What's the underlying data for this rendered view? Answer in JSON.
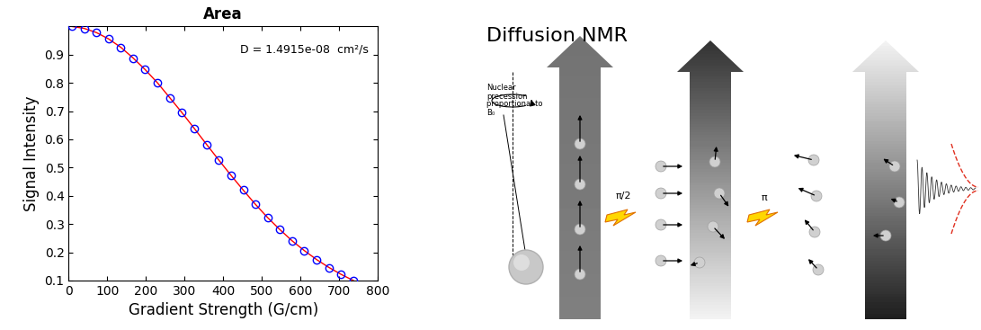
{
  "chart_data": {
    "type": "line",
    "title": "Area",
    "x_label": "Gradient Strength (G/cm)",
    "y_label": "Signal Intensity",
    "annotations": [
      "D = 1.4915e-08  cm²/s"
    ],
    "x": [
      8,
      40,
      72,
      103,
      135,
      167,
      198,
      230,
      262,
      293,
      325,
      357,
      389,
      420,
      452,
      484,
      515,
      547,
      579,
      610,
      642,
      674,
      705,
      737
    ],
    "series": [
      {
        "type": "line",
        "color": "#ff0000",
        "line_style": "solid",
        "values": [
          1.0,
          0.993,
          0.978,
          0.956,
          0.926,
          0.888,
          0.847,
          0.8,
          0.747,
          0.695,
          0.639,
          0.582,
          0.526,
          0.473,
          0.42,
          0.369,
          0.323,
          0.28,
          0.24,
          0.206,
          0.174,
          0.146,
          0.122,
          0.1
        ]
      },
      {
        "type": "scatter",
        "color": "#0000ff",
        "marker": "circle",
        "values": [
          1.0,
          0.993,
          0.978,
          0.956,
          0.926,
          0.888,
          0.847,
          0.8,
          0.747,
          0.695,
          0.639,
          0.582,
          0.526,
          0.473,
          0.42,
          0.369,
          0.323,
          0.28,
          0.24,
          0.206,
          0.174,
          0.146,
          0.122,
          0.1
        ]
      }
    ],
    "xlim": [
      0,
      800
    ],
    "xticks": [
      0,
      100,
      200,
      300,
      400,
      500,
      600,
      700,
      800
    ],
    "ylim": [
      0.1,
      1.0
    ],
    "yticks": [
      0.1,
      0.2,
      0.3,
      0.4,
      0.5,
      0.6,
      0.7,
      0.8,
      0.9
    ],
    "grid": false
  },
  "diagram": {
    "title": "Diffusion NMR",
    "note_lines": [
      "Nuclear",
      "precession",
      "proportional to",
      "B₀"
    ],
    "pulses": [
      "π/2",
      "π"
    ]
  }
}
